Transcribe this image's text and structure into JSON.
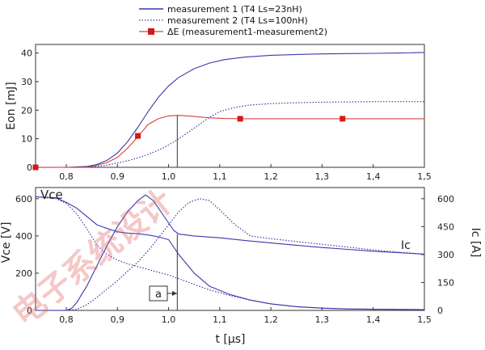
{
  "legend": [
    {
      "label": "measurement 1 (T4 Ls=23nH)",
      "style": "solid",
      "color": "#3a3aaa"
    },
    {
      "label": "measurement 2 (T4 Ls=100nH)",
      "style": "dotted",
      "color": "#3a3aaa"
    },
    {
      "label": "ΔE (measurement1-measurement2)",
      "style": "marker",
      "color": "#d84040"
    }
  ],
  "watermark": "电子系统设计",
  "chart_data": [
    {
      "type": "line",
      "title": "",
      "xlabel": "",
      "ylabel": "Eon [mJ]",
      "xlim": [
        0.74,
        1.5
      ],
      "ylim": [
        0,
        43
      ],
      "xticks": [
        "0,8",
        "0,9",
        "1,0",
        "1,1",
        "1,2",
        "1,3",
        "1,4",
        "1,5"
      ],
      "yticks": [
        "0",
        "10",
        "20",
        "30",
        "40"
      ],
      "series": [
        {
          "name": "measurement 1 (T4 Ls=23nH)",
          "color": "#3a3aaa",
          "style": "solid",
          "x": [
            0.74,
            0.8,
            0.84,
            0.86,
            0.88,
            0.9,
            0.92,
            0.94,
            0.96,
            0.98,
            1.0,
            1.02,
            1.05,
            1.08,
            1.11,
            1.15,
            1.2,
            1.25,
            1.3,
            1.35,
            1.4,
            1.45,
            1.5
          ],
          "y": [
            0,
            0,
            0.3,
            1,
            2.5,
            5,
            9,
            14,
            19.5,
            24.5,
            28.5,
            31.5,
            34.5,
            36.5,
            37.7,
            38.6,
            39.2,
            39.5,
            39.7,
            39.8,
            39.9,
            40.0,
            40.2
          ]
        },
        {
          "name": "measurement 2 (T4 Ls=100nH)",
          "color": "#3a3aaa",
          "style": "dotted",
          "x": [
            0.74,
            0.84,
            0.86,
            0.88,
            0.9,
            0.92,
            0.94,
            0.96,
            0.98,
            1.0,
            1.02,
            1.04,
            1.06,
            1.08,
            1.1,
            1.13,
            1.16,
            1.2,
            1.25,
            1.3,
            1.35,
            1.4,
            1.45,
            1.5
          ],
          "y": [
            0,
            0,
            0.3,
            0.8,
            1.5,
            2.3,
            3.3,
            4.5,
            6,
            7.8,
            10,
            12.5,
            15,
            17.5,
            19.5,
            21,
            21.8,
            22.3,
            22.6,
            22.8,
            22.9,
            23,
            23,
            23
          ]
        },
        {
          "name": "ΔE (measurement1-measurement2)",
          "color": "#d84040",
          "style": "solid",
          "x": [
            0.74,
            0.84,
            0.86,
            0.88,
            0.9,
            0.92,
            0.94,
            0.96,
            0.98,
            1.0,
            1.02,
            1.05,
            1.08,
            1.11,
            1.15,
            1.2,
            1.25,
            1.3,
            1.35,
            1.4,
            1.45,
            1.5
          ],
          "y": [
            0,
            0,
            0.7,
            1.7,
            3.5,
            6.7,
            10.7,
            15,
            17,
            18,
            18.2,
            17.8,
            17.3,
            17.1,
            17,
            17,
            17,
            17,
            17,
            17,
            17,
            17
          ]
        }
      ],
      "markers": {
        "color": "#d81818",
        "x": [
          0.74,
          0.94,
          1.14,
          1.34
        ],
        "y": [
          0,
          11,
          17,
          17
        ]
      },
      "vline": {
        "x": 1.017
      }
    },
    {
      "type": "line",
      "title": "",
      "xlabel": "t [µs]",
      "ylabel": "Vce [V]",
      "ylabel_right": "Ic [A]",
      "xlim": [
        0.74,
        1.5
      ],
      "ylim": [
        0,
        660
      ],
      "ylim_right": [
        0,
        660
      ],
      "xticks": [
        "0,8",
        "0,9",
        "1,0",
        "1,1",
        "1,2",
        "1,3",
        "1,4",
        "1,5"
      ],
      "yticks": [
        "0",
        "200",
        "400",
        "600"
      ],
      "yticks_right": [
        "0",
        "150",
        "300",
        "450",
        "600"
      ],
      "annotations": [
        {
          "text": "Vce"
        },
        {
          "text": "Ic"
        },
        {
          "text": "a",
          "target_x": 1.017,
          "target_y": 45
        }
      ],
      "vline": {
        "x": 1.017
      },
      "series": [
        {
          "name": "Vce meas1",
          "color": "#3a3aaa",
          "style": "solid",
          "x": [
            0.74,
            0.78,
            0.8,
            0.82,
            0.84,
            0.86,
            0.88,
            0.9,
            0.92,
            0.94,
            0.96,
            0.98,
            1.0,
            1.02,
            1.05,
            1.08,
            1.12,
            1.16,
            1.2,
            1.25,
            1.3,
            1.35,
            1.4,
            1.45,
            1.5
          ],
          "y": [
            610,
            605,
            580,
            550,
            505,
            460,
            440,
            422,
            415,
            412,
            405,
            395,
            380,
            300,
            200,
            130,
            85,
            55,
            35,
            20,
            12,
            8,
            6,
            5,
            4
          ]
        },
        {
          "name": "Vce meas2",
          "color": "#3a3aaa",
          "style": "dotted",
          "x": [
            0.74,
            0.78,
            0.8,
            0.82,
            0.84,
            0.86,
            0.88,
            0.9,
            0.92,
            0.94,
            0.96,
            0.98,
            1.0,
            1.02,
            1.05,
            1.08,
            1.12,
            1.16,
            1.2,
            1.25,
            1.3,
            1.35,
            1.4,
            1.45,
            1.5
          ],
          "y": [
            610,
            600,
            575,
            520,
            440,
            350,
            300,
            270,
            250,
            235,
            220,
            205,
            190,
            170,
            140,
            110,
            80,
            55,
            35,
            20,
            12,
            8,
            6,
            5,
            4
          ]
        },
        {
          "name": "Ic meas1",
          "color": "#3a3aaa",
          "style": "solid",
          "x": [
            0.74,
            0.8,
            0.81,
            0.82,
            0.84,
            0.86,
            0.88,
            0.9,
            0.92,
            0.94,
            0.955,
            0.97,
            0.99,
            1.01,
            1.02,
            1.05,
            1.1,
            1.15,
            1.2,
            1.25,
            1.3,
            1.35,
            1.4,
            1.45,
            1.5
          ],
          "y": [
            0,
            0,
            10,
            40,
            130,
            240,
            350,
            450,
            530,
            590,
            620,
            590,
            510,
            430,
            410,
            400,
            390,
            375,
            362,
            350,
            338,
            328,
            318,
            310,
            302
          ]
        },
        {
          "name": "Ic meas2",
          "color": "#3a3aaa",
          "style": "dotted",
          "x": [
            0.74,
            0.8,
            0.82,
            0.84,
            0.86,
            0.88,
            0.9,
            0.92,
            0.94,
            0.96,
            0.98,
            1.0,
            1.02,
            1.04,
            1.06,
            1.08,
            1.1,
            1.13,
            1.16,
            1.2,
            1.25,
            1.3,
            1.35,
            1.4,
            1.45,
            1.5
          ],
          "y": [
            0,
            0,
            5,
            30,
            70,
            115,
            160,
            210,
            260,
            320,
            390,
            460,
            530,
            580,
            600,
            590,
            540,
            460,
            400,
            385,
            370,
            355,
            340,
            325,
            312,
            302
          ]
        }
      ]
    }
  ]
}
